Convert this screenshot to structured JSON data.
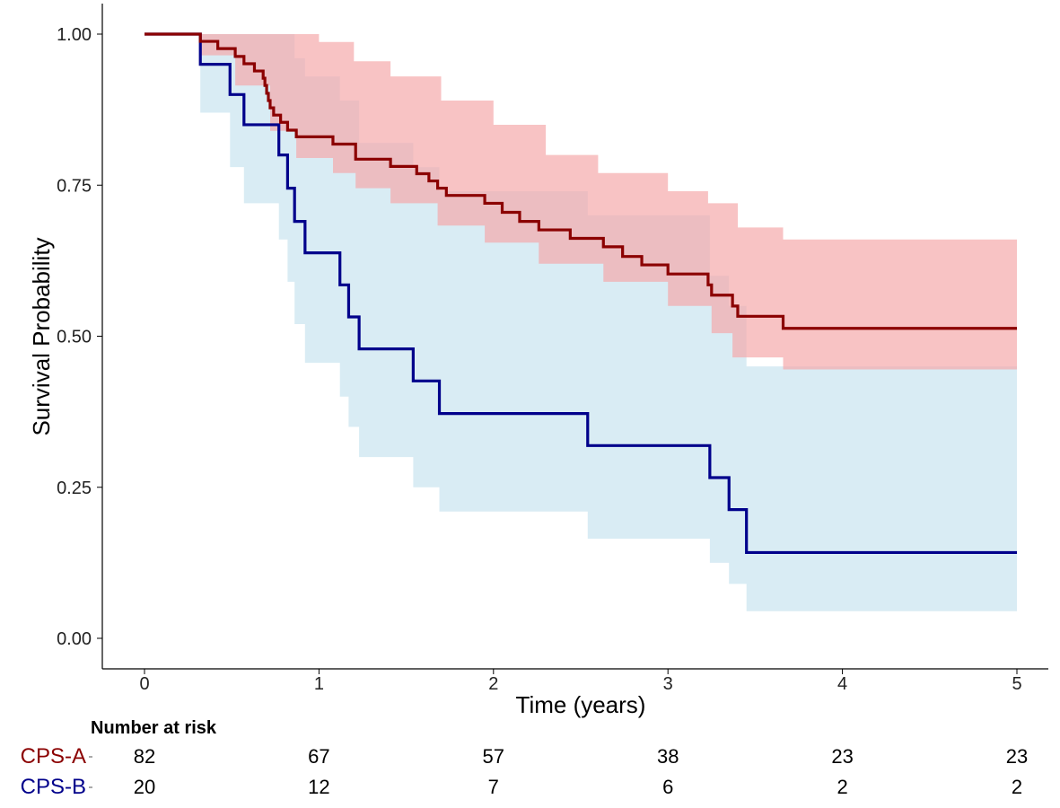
{
  "chart_data": {
    "type": "line",
    "subtype": "kaplan-meier",
    "xlabel": "Time (years)",
    "ylabel": "Survival Probability",
    "xlim": [
      0,
      5
    ],
    "ylim": [
      0,
      1
    ],
    "xticks": [
      "0",
      "1",
      "2",
      "3",
      "4",
      "5"
    ],
    "yticks": [
      "0.00",
      "0.25",
      "0.50",
      "0.75",
      "1.00"
    ],
    "grid": false,
    "series": [
      {
        "name": "CPS-A",
        "color": "#8B0000",
        "band_color": "#F4A6A8",
        "steps": [
          [
            0,
            1.0
          ],
          [
            0.32,
            0.988
          ],
          [
            0.42,
            0.976
          ],
          [
            0.52,
            0.963
          ],
          [
            0.57,
            0.951
          ],
          [
            0.63,
            0.939
          ],
          [
            0.68,
            0.927
          ],
          [
            0.69,
            0.915
          ],
          [
            0.7,
            0.902
          ],
          [
            0.71,
            0.89
          ],
          [
            0.72,
            0.878
          ],
          [
            0.74,
            0.866
          ],
          [
            0.78,
            0.854
          ],
          [
            0.82,
            0.841
          ],
          [
            0.87,
            0.83
          ],
          [
            1.08,
            0.818
          ],
          [
            1.21,
            0.793
          ],
          [
            1.41,
            0.781
          ],
          [
            1.56,
            0.769
          ],
          [
            1.63,
            0.757
          ],
          [
            1.68,
            0.745
          ],
          [
            1.73,
            0.733
          ],
          [
            1.95,
            0.72
          ],
          [
            2.05,
            0.705
          ],
          [
            2.15,
            0.69
          ],
          [
            2.26,
            0.676
          ],
          [
            2.44,
            0.662
          ],
          [
            2.63,
            0.648
          ],
          [
            2.74,
            0.632
          ],
          [
            2.85,
            0.618
          ],
          [
            3.0,
            0.603
          ],
          [
            3.23,
            0.585
          ],
          [
            3.25,
            0.568
          ],
          [
            3.37,
            0.55
          ],
          [
            3.4,
            0.533
          ],
          [
            3.66,
            0.513
          ],
          [
            5.0,
            0.513
          ]
        ],
        "ci_upper": [
          [
            0,
            1.0
          ],
          [
            0.32,
            1.0
          ],
          [
            0.9,
            1.0
          ],
          [
            1.0,
            0.987
          ],
          [
            1.2,
            0.955
          ],
          [
            1.41,
            0.93
          ],
          [
            1.7,
            0.89
          ],
          [
            2.0,
            0.85
          ],
          [
            2.3,
            0.8
          ],
          [
            2.6,
            0.77
          ],
          [
            3.0,
            0.74
          ],
          [
            3.23,
            0.72
          ],
          [
            3.4,
            0.68
          ],
          [
            3.66,
            0.66
          ],
          [
            5.0,
            0.648
          ]
        ],
        "ci_lower": [
          [
            0,
            1.0
          ],
          [
            0.32,
            0.965
          ],
          [
            0.52,
            0.915
          ],
          [
            0.72,
            0.84
          ],
          [
            0.87,
            0.795
          ],
          [
            1.08,
            0.77
          ],
          [
            1.21,
            0.745
          ],
          [
            1.41,
            0.72
          ],
          [
            1.68,
            0.683
          ],
          [
            1.95,
            0.655
          ],
          [
            2.26,
            0.62
          ],
          [
            2.63,
            0.59
          ],
          [
            3.0,
            0.55
          ],
          [
            3.25,
            0.505
          ],
          [
            3.37,
            0.465
          ],
          [
            3.66,
            0.445
          ],
          [
            5.0,
            0.445
          ]
        ]
      },
      {
        "name": "CPS-B",
        "color": "#00008B",
        "band_color": "#BFE0EC",
        "steps": [
          [
            0,
            1.0
          ],
          [
            0.32,
            0.95
          ],
          [
            0.49,
            0.9
          ],
          [
            0.57,
            0.85
          ],
          [
            0.77,
            0.8
          ],
          [
            0.82,
            0.745
          ],
          [
            0.86,
            0.69
          ],
          [
            0.92,
            0.638
          ],
          [
            1.12,
            0.585
          ],
          [
            1.17,
            0.532
          ],
          [
            1.23,
            0.479
          ],
          [
            1.54,
            0.426
          ],
          [
            1.69,
            0.372
          ],
          [
            2.54,
            0.319
          ],
          [
            3.24,
            0.266
          ],
          [
            3.35,
            0.213
          ],
          [
            3.45,
            0.142
          ],
          [
            5.0,
            0.142
          ]
        ],
        "ci_upper": [
          [
            0,
            1.0
          ],
          [
            0.32,
            1.0
          ],
          [
            0.82,
            1.0
          ],
          [
            0.86,
            0.96
          ],
          [
            0.92,
            0.93
          ],
          [
            1.12,
            0.89
          ],
          [
            1.23,
            0.82
          ],
          [
            1.54,
            0.78
          ],
          [
            1.69,
            0.74
          ],
          [
            2.54,
            0.7
          ],
          [
            3.24,
            0.6
          ],
          [
            3.35,
            0.55
          ],
          [
            3.45,
            0.45
          ],
          [
            5.0,
            0.405
          ]
        ],
        "ci_lower": [
          [
            0,
            1.0
          ],
          [
            0.32,
            0.87
          ],
          [
            0.49,
            0.78
          ],
          [
            0.57,
            0.72
          ],
          [
            0.77,
            0.66
          ],
          [
            0.82,
            0.59
          ],
          [
            0.86,
            0.52
          ],
          [
            0.92,
            0.456
          ],
          [
            1.12,
            0.4
          ],
          [
            1.17,
            0.35
          ],
          [
            1.23,
            0.3
          ],
          [
            1.54,
            0.25
          ],
          [
            1.69,
            0.21
          ],
          [
            2.54,
            0.165
          ],
          [
            3.24,
            0.125
          ],
          [
            3.35,
            0.09
          ],
          [
            3.45,
            0.045
          ],
          [
            5.0,
            0.045
          ]
        ]
      }
    ],
    "risk_table": {
      "title": "Number at risk",
      "times": [
        0,
        1,
        2,
        3,
        4,
        5
      ],
      "rows": [
        {
          "name": "CPS-A",
          "color": "#8B0000",
          "values": [
            "82",
            "67",
            "57",
            "38",
            "23",
            "23"
          ]
        },
        {
          "name": "CPS-B",
          "color": "#00008B",
          "values": [
            "20",
            "12",
            "7",
            "6",
            "2",
            "2"
          ]
        }
      ]
    }
  }
}
